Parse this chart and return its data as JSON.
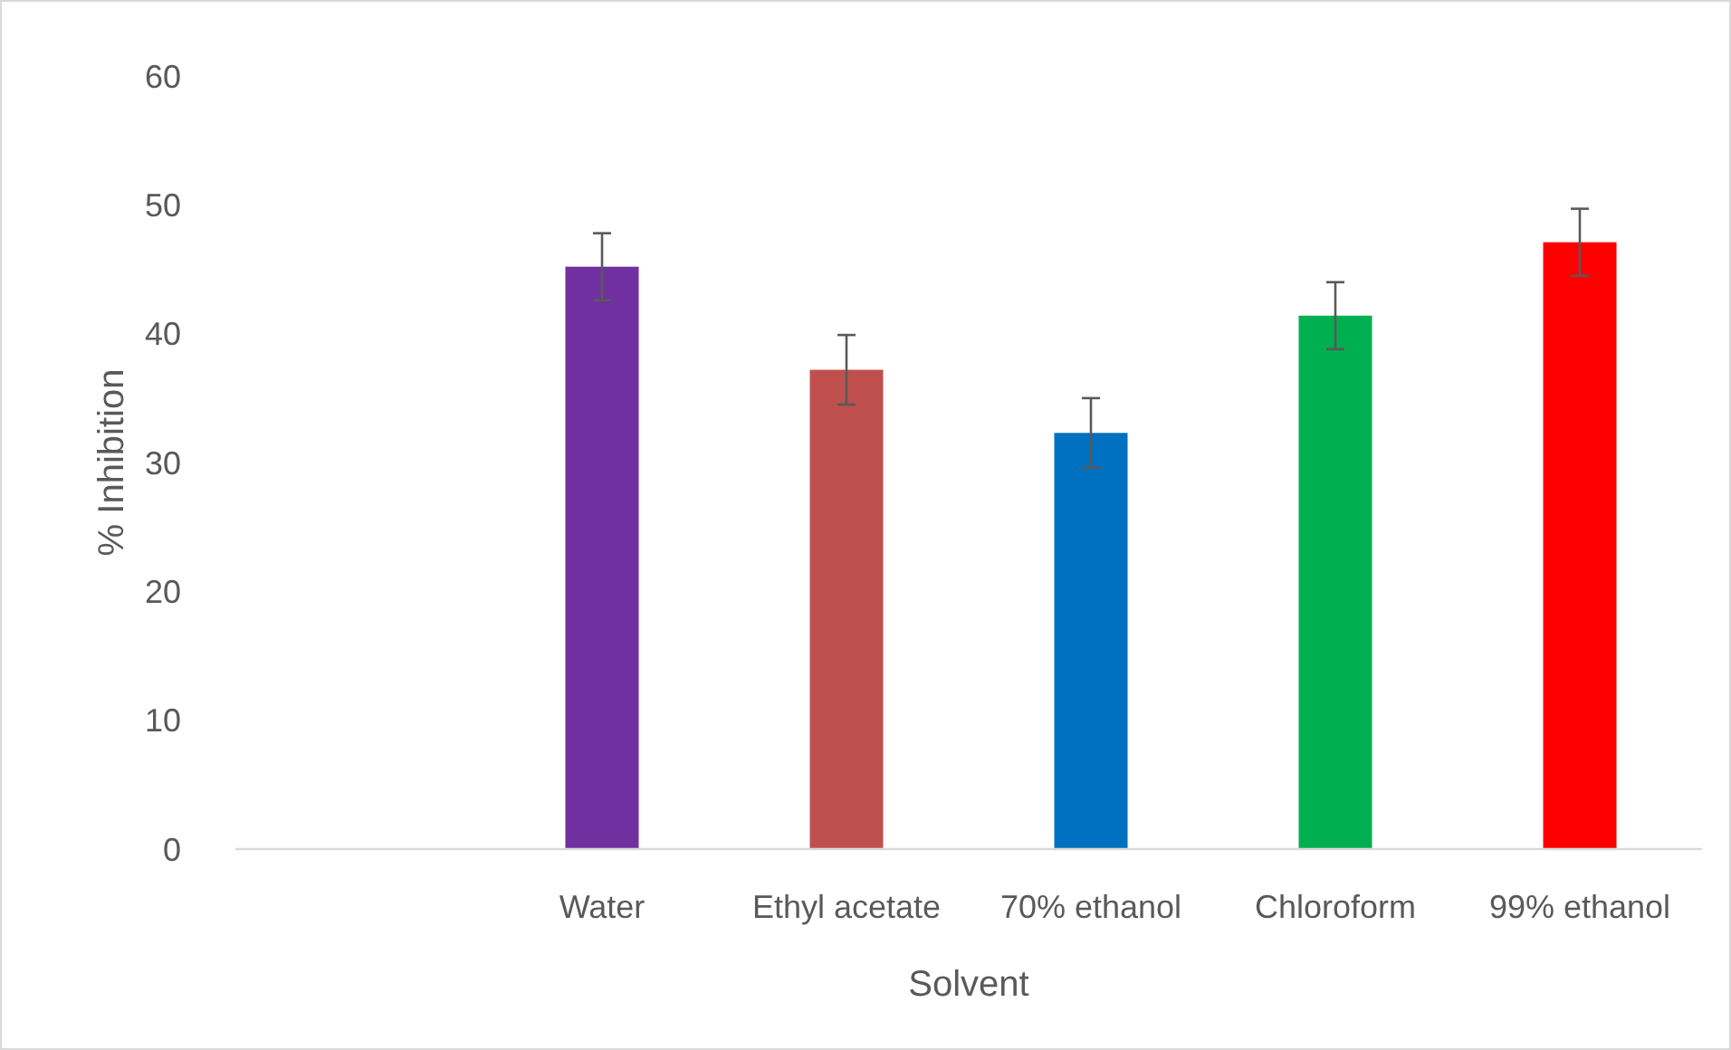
{
  "chart_data": {
    "type": "bar",
    "xlabel": "Solvent",
    "ylabel": "% Inhibition",
    "categories": [
      null,
      "Water",
      "Ethyl acetate",
      "70% ethanol",
      "Chloroform",
      "99% ethanol"
    ],
    "values": [
      null,
      45.2,
      37.2,
      32.3,
      41.4,
      47.1
    ],
    "errors": [
      null,
      2.6,
      2.7,
      2.7,
      2.6,
      2.6
    ],
    "colors": [
      null,
      "#7030a0",
      "#c0504d",
      "#0070c0",
      "#00b050",
      "#ff0000"
    ],
    "ylim": [
      0,
      60
    ],
    "yticks": [
      0,
      10,
      20,
      30,
      40,
      50,
      60
    ],
    "grid": false
  }
}
